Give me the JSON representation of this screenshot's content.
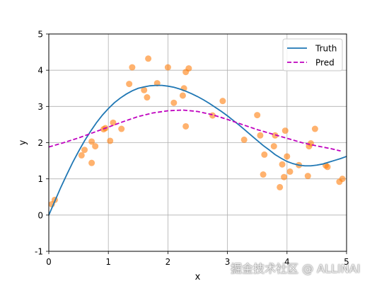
{
  "chart_data": {
    "type": "line",
    "xlabel": "x",
    "ylabel": "y",
    "xlim": [
      0,
      5
    ],
    "ylim": [
      -1,
      5
    ],
    "xticks": [
      "0",
      "1",
      "2",
      "3",
      "4",
      "5"
    ],
    "yticks": [
      "-1",
      "0",
      "1",
      "2",
      "3",
      "4",
      "5"
    ],
    "grid": true,
    "legend_position": "top-right",
    "series": [
      {
        "name": "Truth",
        "type": "line",
        "style": "solid",
        "color": "#1f77b4",
        "x": [
          0.0,
          0.1,
          0.2,
          0.3,
          0.4,
          0.5,
          0.6,
          0.7,
          0.8,
          0.9,
          1.0,
          1.1,
          1.2,
          1.3,
          1.4,
          1.5,
          1.6,
          1.7,
          1.8,
          1.9,
          2.0,
          2.1,
          2.2,
          2.3,
          2.4,
          2.5,
          2.6,
          2.7,
          2.8,
          2.9,
          3.0,
          3.1,
          3.2,
          3.3,
          3.4,
          3.5,
          3.6,
          3.7,
          3.8,
          3.9,
          4.0,
          4.1,
          4.2,
          4.3,
          4.4,
          4.5,
          4.6,
          4.7,
          4.8,
          4.9,
          5.0
        ],
        "y": [
          0.0,
          0.38,
          0.76,
          1.11,
          1.45,
          1.76,
          2.05,
          2.31,
          2.55,
          2.76,
          2.94,
          3.1,
          3.23,
          3.34,
          3.43,
          3.5,
          3.54,
          3.57,
          3.58,
          3.58,
          3.56,
          3.53,
          3.48,
          3.42,
          3.35,
          3.27,
          3.18,
          3.08,
          2.97,
          2.86,
          2.74,
          2.61,
          2.48,
          2.34,
          2.2,
          2.06,
          1.92,
          1.8,
          1.67,
          1.57,
          1.48,
          1.42,
          1.38,
          1.36,
          1.36,
          1.38,
          1.41,
          1.46,
          1.51,
          1.56,
          1.62
        ]
      },
      {
        "name": "Pred",
        "type": "line",
        "style": "dashed",
        "color": "#bf00bf",
        "x": [
          0.0,
          0.25,
          0.5,
          0.75,
          1.0,
          1.25,
          1.5,
          1.75,
          2.0,
          2.25,
          2.5,
          2.75,
          3.0,
          3.25,
          3.5,
          3.75,
          4.0,
          4.25,
          4.5,
          4.75,
          4.9
        ],
        "y": [
          1.88,
          2.0,
          2.13,
          2.28,
          2.43,
          2.58,
          2.72,
          2.82,
          2.88,
          2.9,
          2.86,
          2.77,
          2.64,
          2.5,
          2.36,
          2.24,
          2.12,
          2.0,
          1.91,
          1.83,
          1.77
        ]
      },
      {
        "type": "scatter",
        "color": "#ff7f0e",
        "opacity": 0.6,
        "points": [
          [
            0.05,
            0.3
          ],
          [
            0.1,
            0.42
          ],
          [
            0.55,
            1.65
          ],
          [
            0.6,
            1.8
          ],
          [
            0.72,
            1.44
          ],
          [
            0.72,
            2.03
          ],
          [
            0.78,
            1.9
          ],
          [
            0.92,
            2.37
          ],
          [
            0.95,
            2.4
          ],
          [
            1.03,
            2.05
          ],
          [
            1.08,
            2.55
          ],
          [
            1.22,
            2.38
          ],
          [
            1.35,
            3.62
          ],
          [
            1.4,
            4.08
          ],
          [
            1.6,
            3.45
          ],
          [
            1.65,
            3.25
          ],
          [
            1.67,
            4.32
          ],
          [
            1.82,
            3.64
          ],
          [
            2.0,
            4.08
          ],
          [
            2.1,
            3.1
          ],
          [
            2.25,
            3.3
          ],
          [
            2.27,
            3.5
          ],
          [
            2.3,
            2.45
          ],
          [
            2.3,
            3.95
          ],
          [
            2.35,
            4.05
          ],
          [
            2.75,
            2.75
          ],
          [
            2.92,
            3.15
          ],
          [
            3.28,
            2.08
          ],
          [
            3.5,
            2.76
          ],
          [
            3.55,
            2.2
          ],
          [
            3.6,
            1.12
          ],
          [
            3.62,
            1.67
          ],
          [
            3.78,
            1.9
          ],
          [
            3.8,
            2.2
          ],
          [
            3.88,
            0.77
          ],
          [
            3.92,
            1.4
          ],
          [
            3.95,
            1.05
          ],
          [
            3.97,
            2.33
          ],
          [
            4.0,
            1.62
          ],
          [
            4.05,
            1.2
          ],
          [
            4.2,
            1.38
          ],
          [
            4.35,
            1.08
          ],
          [
            4.37,
            1.9
          ],
          [
            4.4,
            1.98
          ],
          [
            4.47,
            2.38
          ],
          [
            4.65,
            1.37
          ],
          [
            4.68,
            1.33
          ],
          [
            4.88,
            0.92
          ],
          [
            4.93,
            1.0
          ]
        ]
      }
    ]
  },
  "watermark": "掘金技术社区 @ ALLINAI"
}
